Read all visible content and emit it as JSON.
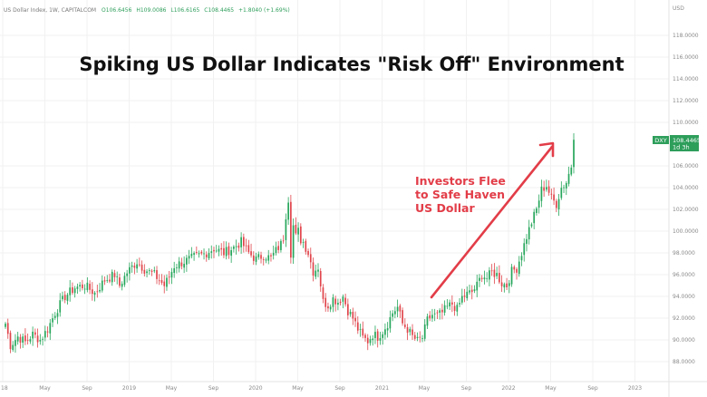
{
  "header": {
    "symbol": "US Dollar Index, 1W, CAPITALCOM",
    "open": "O106.6456",
    "high": "H109.0086",
    "low": "L106.6165",
    "close": "C108.4465",
    "change": "+1.8040 (+1.69%)"
  },
  "price_tag": {
    "ticker": "DXY",
    "price": "108.4465",
    "countdown": "1d 3h"
  },
  "colors": {
    "up": "#26a65b",
    "down": "#e0454b",
    "arrow": "#e23d48",
    "tag": "#2e9e5b"
  },
  "chart_data": {
    "type": "candlestick",
    "title": "Spiking US Dollar Indicates \"Risk Off\" Environment",
    "annotation": [
      "Investors Flee",
      "to Safe Haven",
      "US Dollar"
    ],
    "yaxis_unit": "USD",
    "ylim": [
      87,
      120
    ],
    "y_ticks": [
      "88.0000",
      "90.0000",
      "92.0000",
      "94.0000",
      "96.0000",
      "98.0000",
      "100.0000",
      "102.0000",
      "104.0000",
      "106.0000",
      "110.0000",
      "112.0000",
      "114.0000",
      "116.0000",
      "118.0000"
    ],
    "x_ticks": [
      "18",
      "May",
      "Sep",
      "2019",
      "May",
      "Sep",
      "2020",
      "May",
      "Sep",
      "2021",
      "May",
      "Sep",
      "2022",
      "May",
      "Sep",
      "2023"
    ],
    "path": [
      [
        0,
        91.5
      ],
      [
        2,
        89.5
      ],
      [
        5,
        90.3
      ],
      [
        8,
        89.8
      ],
      [
        11,
        90.5
      ],
      [
        14,
        90.0
      ],
      [
        17,
        91.0
      ],
      [
        20,
        92.5
      ],
      [
        24,
        94.0
      ],
      [
        28,
        94.8
      ],
      [
        32,
        95.0
      ],
      [
        36,
        94.3
      ],
      [
        40,
        95.5
      ],
      [
        44,
        96.0
      ],
      [
        46,
        95.0
      ],
      [
        49,
        96.2
      ],
      [
        53,
        97.2
      ],
      [
        56,
        96.5
      ],
      [
        60,
        96.0
      ],
      [
        64,
        95.0
      ],
      [
        66,
        95.8
      ],
      [
        68,
        96.8
      ],
      [
        72,
        97.2
      ],
      [
        76,
        97.6
      ],
      [
        80,
        97.9
      ],
      [
        84,
        98.4
      ],
      [
        88,
        98.0
      ],
      [
        92,
        98.5
      ],
      [
        95,
        99.0
      ],
      [
        98,
        98.0
      ],
      [
        101,
        97.4
      ],
      [
        104,
        97.8
      ],
      [
        107,
        97.5
      ],
      [
        109,
        98.2
      ],
      [
        111,
        98.8
      ],
      [
        112,
        99.4
      ],
      [
        113,
        101.5
      ],
      [
        114,
        103.0
      ],
      [
        115,
        98.0
      ],
      [
        116,
        100.5
      ],
      [
        117,
        99.5
      ],
      [
        118,
        100.0
      ],
      [
        119,
        99.2
      ],
      [
        120,
        99.0
      ],
      [
        122,
        98.0
      ],
      [
        124,
        96.3
      ],
      [
        126,
        96.7
      ],
      [
        128,
        93.5
      ],
      [
        130,
        93.2
      ],
      [
        132,
        93.8
      ],
      [
        134,
        93.5
      ],
      [
        136,
        94.0
      ],
      [
        138,
        92.7
      ],
      [
        140,
        92.0
      ],
      [
        142,
        91.0
      ],
      [
        144,
        90.2
      ],
      [
        146,
        89.9
      ],
      [
        148,
        90.5
      ],
      [
        150,
        90.3
      ],
      [
        152,
        90.8
      ],
      [
        154,
        91.5
      ],
      [
        156,
        92.5
      ],
      [
        158,
        93.0
      ],
      [
        160,
        91.5
      ],
      [
        162,
        91.0
      ],
      [
        164,
        90.3
      ],
      [
        166,
        89.9
      ],
      [
        168,
        90.2
      ],
      [
        170,
        91.8
      ],
      [
        172,
        92.3
      ],
      [
        174,
        92.2
      ],
      [
        176,
        92.5
      ],
      [
        178,
        93.0
      ],
      [
        180,
        93.3
      ],
      [
        182,
        92.8
      ],
      [
        184,
        93.9
      ],
      [
        186,
        94.2
      ],
      [
        188,
        94.4
      ],
      [
        190,
        95.0
      ],
      [
        192,
        96.0
      ],
      [
        194,
        95.7
      ],
      [
        196,
        96.2
      ],
      [
        198,
        96.0
      ],
      [
        200,
        95.2
      ],
      [
        202,
        95.0
      ],
      [
        204,
        96.3
      ],
      [
        206,
        96.6
      ],
      [
        208,
        98.0
      ],
      [
        210,
        99.5
      ],
      [
        212,
        100.8
      ],
      [
        214,
        102.0
      ],
      [
        216,
        103.8
      ],
      [
        218,
        104.2
      ],
      [
        220,
        103.0
      ],
      [
        222,
        102.5
      ],
      [
        224,
        104.0
      ],
      [
        226,
        104.5
      ],
      [
        228,
        106.0
      ],
      [
        229,
        108.4
      ]
    ]
  }
}
